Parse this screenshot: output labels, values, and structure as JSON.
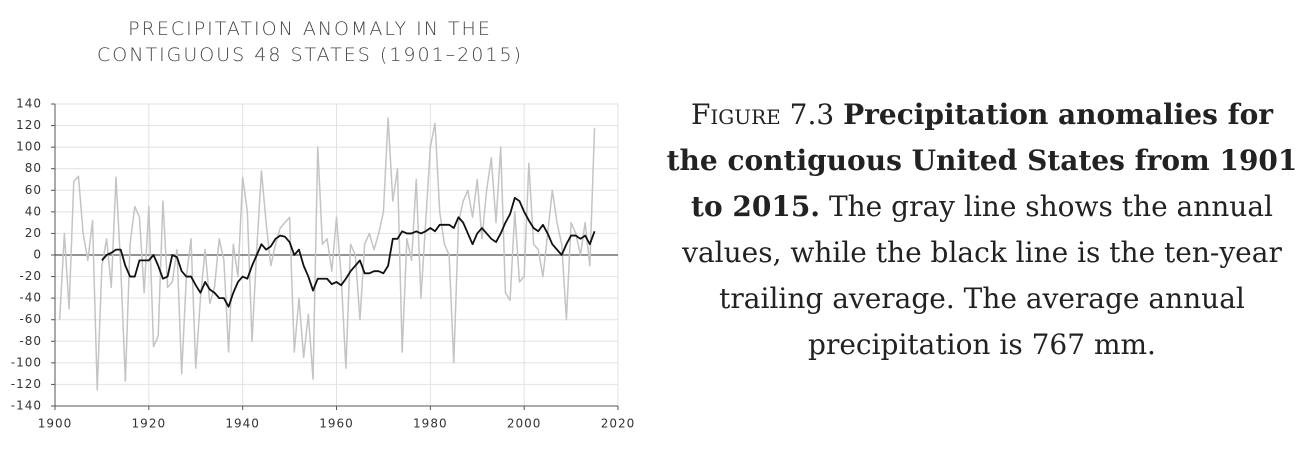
{
  "chart_data": {
    "type": "line",
    "title": "PRECIPITATION ANOMALY IN THE CONTIGUOUS 48 STATES (1901–2015)",
    "x": [
      1901,
      1902,
      1903,
      1904,
      1905,
      1906,
      1907,
      1908,
      1909,
      1910,
      1911,
      1912,
      1913,
      1914,
      1915,
      1916,
      1917,
      1918,
      1919,
      1920,
      1921,
      1922,
      1923,
      1924,
      1925,
      1926,
      1927,
      1928,
      1929,
      1930,
      1931,
      1932,
      1933,
      1934,
      1935,
      1936,
      1937,
      1938,
      1939,
      1940,
      1941,
      1942,
      1943,
      1944,
      1945,
      1946,
      1947,
      1948,
      1949,
      1950,
      1951,
      1952,
      1953,
      1954,
      1955,
      1956,
      1957,
      1958,
      1959,
      1960,
      1961,
      1962,
      1963,
      1964,
      1965,
      1966,
      1967,
      1968,
      1969,
      1970,
      1971,
      1972,
      1973,
      1974,
      1975,
      1976,
      1977,
      1978,
      1979,
      1980,
      1981,
      1982,
      1983,
      1984,
      1985,
      1986,
      1987,
      1988,
      1989,
      1990,
      1991,
      1992,
      1993,
      1994,
      1995,
      1996,
      1997,
      1998,
      1999,
      2000,
      2001,
      2002,
      2003,
      2004,
      2005,
      2006,
      2007,
      2008,
      2009,
      2010,
      2011,
      2012,
      2013,
      2014,
      2015
    ],
    "series": [
      {
        "color": "#c4c4c4",
        "values": [
          -60,
          20,
          -50,
          68,
          73,
          20,
          -5,
          32,
          -125,
          -10,
          15,
          -30,
          72,
          -10,
          -117,
          10,
          45,
          35,
          -35,
          45,
          -85,
          -75,
          50,
          -30,
          -25,
          5,
          -110,
          -20,
          15,
          -105,
          -40,
          5,
          -45,
          -30,
          15,
          -5,
          -90,
          10,
          -20,
          72,
          40,
          -80,
          5,
          78,
          30,
          -10,
          10,
          25,
          30,
          35,
          -90,
          -40,
          -95,
          -55,
          -115,
          100,
          10,
          15,
          -15,
          35,
          -20,
          -105,
          10,
          0,
          -60,
          10,
          20,
          5,
          20,
          40,
          127,
          50,
          80,
          -90,
          15,
          -5,
          70,
          -40,
          30,
          100,
          122,
          40,
          10,
          0,
          -100,
          30,
          50,
          60,
          35,
          70,
          15,
          60,
          90,
          30,
          100,
          -35,
          -42,
          40,
          -25,
          -20,
          85,
          10,
          5,
          -20,
          20,
          60,
          30,
          10,
          -60,
          30,
          20,
          0,
          30,
          -10,
          118
        ]
      },
      {
        "color": "#111111",
        "values": [
          null,
          null,
          null,
          null,
          null,
          null,
          null,
          null,
          null,
          -5,
          0,
          2,
          5,
          5,
          -10,
          -20,
          -20,
          -5,
          -5,
          -5,
          0,
          -10,
          -22,
          -20,
          0,
          -2,
          -15,
          -20,
          -20,
          -28,
          -35,
          -25,
          -32,
          -35,
          -40,
          -40,
          -48,
          -35,
          -25,
          -20,
          -22,
          -10,
          0,
          10,
          5,
          8,
          15,
          18,
          17,
          12,
          0,
          5,
          -10,
          -20,
          -33,
          -22,
          -22,
          -22,
          -27,
          -25,
          -28,
          -22,
          -15,
          -10,
          -5,
          -17,
          -17,
          -15,
          -15,
          -17,
          -10,
          15,
          15,
          22,
          20,
          20,
          22,
          20,
          22,
          25,
          22,
          28,
          28,
          28,
          25,
          35,
          30,
          20,
          10,
          20,
          25,
          20,
          15,
          12,
          20,
          30,
          38,
          53,
          50,
          40,
          32,
          25,
          22,
          28,
          20,
          10,
          5,
          0,
          10,
          18,
          18,
          15,
          18,
          10,
          22
        ]
      }
    ],
    "xlim": [
      1900,
      2020
    ],
    "xticks": [
      1900,
      1920,
      1940,
      1960,
      1980,
      2000,
      2020
    ],
    "ylim": [
      -140,
      140
    ],
    "yticks": [
      -140,
      -120,
      -100,
      -80,
      -60,
      -40,
      -20,
      0,
      20,
      40,
      60,
      80,
      100,
      120,
      140
    ],
    "grid": true
  },
  "caption": {
    "label": "Figure 7.3",
    "bold": "Precipitation anomalies for the contiguous United States from 1901 to 2015.",
    "text": "The gray line shows the annual values, while the black line is the ten-year trailing average. The average annual precipitation is 767 mm."
  }
}
